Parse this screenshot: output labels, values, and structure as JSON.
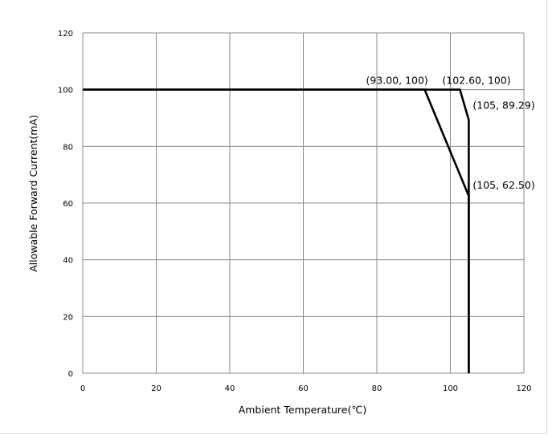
{
  "chart_data": {
    "type": "line",
    "xlabel": "Ambient Temperature(℃)",
    "ylabel": "Allowable Forward Current(mA)",
    "xlim": [
      0,
      120
    ],
    "ylim": [
      0,
      120
    ],
    "xticks": [
      0,
      20,
      40,
      60,
      80,
      100,
      120
    ],
    "yticks": [
      0,
      20,
      40,
      60,
      80,
      100,
      120
    ],
    "grid": true,
    "legend": "none",
    "series": [
      {
        "points": [
          [
            0,
            100
          ],
          [
            93.0,
            100
          ],
          [
            105,
            62.5
          ],
          [
            105,
            0
          ]
        ]
      },
      {
        "points": [
          [
            0,
            100
          ],
          [
            102.6,
            100
          ],
          [
            105,
            89.29
          ],
          [
            105,
            0
          ]
        ]
      }
    ],
    "annotations": [
      {
        "text": "(93.00, 100)",
        "x": 93.0,
        "y": 100
      },
      {
        "text": "(102.60, 100)",
        "x": 102.6,
        "y": 100
      },
      {
        "text": "(105, 89.29)",
        "x": 105,
        "y": 89.29
      },
      {
        "text": "(105, 62.50)",
        "x": 105,
        "y": 62.5
      }
    ]
  }
}
